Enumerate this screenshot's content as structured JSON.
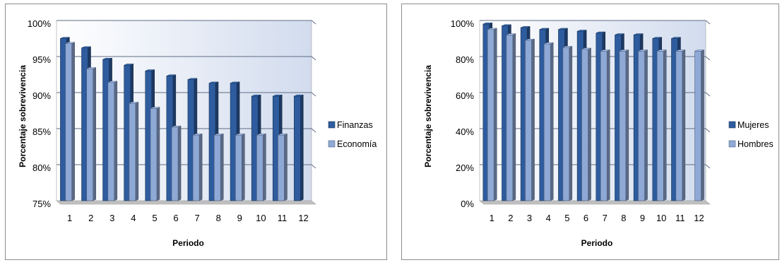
{
  "chart_data": [
    {
      "type": "bar",
      "title": "",
      "xlabel": "Periodo",
      "ylabel": "Porcentaje sobrevivencia",
      "categories": [
        "1",
        "2",
        "3",
        "4",
        "5",
        "6",
        "7",
        "8",
        "9",
        "10",
        "11",
        "12"
      ],
      "ylim": [
        75,
        100
      ],
      "yticks": [
        "75%",
        "80%",
        "85%",
        "90%",
        "95%",
        "100%"
      ],
      "legend_position": "right",
      "series": [
        {
          "name": "Finanzas",
          "color": "#2e5c9e",
          "values": [
            97.5,
            96.2,
            94.6,
            93.8,
            93.0,
            92.3,
            91.8,
            91.3,
            91.3,
            89.5,
            89.5,
            89.5
          ]
        },
        {
          "name": "Economía",
          "color": "#8fa9d6",
          "values": [
            96.8,
            93.3,
            91.4,
            88.5,
            87.8,
            85.2,
            84.1,
            84.1,
            84.1,
            84.1,
            84.1,
            null
          ]
        }
      ]
    },
    {
      "type": "bar",
      "title": "",
      "xlabel": "Periodo",
      "ylabel": "Porcentaje sobrevivencia",
      "categories": [
        "1",
        "2",
        "3",
        "4",
        "5",
        "6",
        "7",
        "8",
        "9",
        "10",
        "11",
        "12"
      ],
      "ylim": [
        0,
        100
      ],
      "yticks": [
        "0%",
        "20%",
        "40%",
        "60%",
        "80%",
        "100%"
      ],
      "legend_position": "right",
      "series": [
        {
          "name": "Mujeres",
          "color": "#2e5c9e",
          "values": [
            98,
            97,
            96,
            95,
            95,
            94,
            93,
            92,
            92,
            90,
            90,
            0
          ]
        },
        {
          "name": "Hombres",
          "color": "#8fa9d6",
          "values": [
            95,
            92,
            89,
            87,
            85,
            84,
            83,
            83,
            83,
            83,
            83,
            83
          ]
        }
      ]
    }
  ]
}
